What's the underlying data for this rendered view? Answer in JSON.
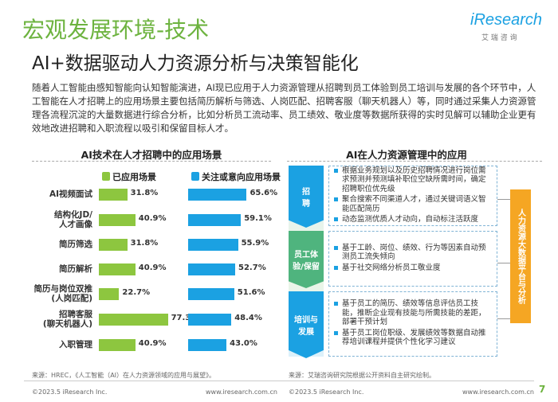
{
  "header": {
    "title": "宏观发展环境-技术",
    "logo": "iResearch",
    "logo_sub": "艾 瑞 咨 询",
    "subtitle": "AI+数据驱动人力资源分析与决策智能化"
  },
  "intro": "随着人工智能由感知智能向认知智能演进，AI现已应用于人力资源管理从招聘到员工体验到员工培训与发展的各个环节中，人工智能在人才招聘上的应用场景主要包括简历解析与筛选、人岗匹配、招聘客服（聊天机器人）等，同时通过采集人力资源管理各流程沉淀的大量数据进行综合分析，比如分析员工流动率、员工绩效、敬业度等数据所获得的实时见解可以辅助企业更有效地改进招聘和入职流程以吸引和保留目标人才。",
  "chart_data": {
    "type": "bar",
    "title": "AI技术在人才招聘中的应用场景",
    "categories": [
      "AI视频面试",
      "结构化JD/\n人才画像",
      "简历筛选",
      "简历解析",
      "简历与岗位双推\n(人岗匹配)",
      "招聘客服\n(聊天机器人)",
      "入职管理"
    ],
    "series": [
      {
        "name": "已应用场景",
        "color": "#8dc63f",
        "values": [
          31.8,
          40.9,
          31.8,
          40.9,
          22.7,
          77.3,
          40.9
        ],
        "value_labels": [
          "31.8%",
          "40.9%",
          "31.8%",
          "40.9%",
          "22.7%",
          "77.3%",
          "40.9%"
        ]
      },
      {
        "name": "关注或意向应用场景",
        "color": "#1ba1e2",
        "values": [
          65.6,
          59.1,
          55.9,
          52.7,
          51.6,
          48.4,
          43.0
        ],
        "value_labels": [
          "65.6%",
          "59.1%",
          "55.9%",
          "52.7%",
          "51.6%",
          "48.4%",
          "43.0%"
        ]
      }
    ],
    "xlim": [
      0,
      100
    ],
    "source": "来源：HREC，《人工智能（AI）在人力资源领域的应用与展望》。"
  },
  "diagram": {
    "title": "AI在人力资源管理中的应用",
    "stages": [
      {
        "label": "招\n聘",
        "items": [
          "根据业务规划以及历史招聘情况进行岗位需求预测并预测填补职位空缺所需时间，确定招聘职位优先级",
          "聚合搜索不同渠道人才，通过关键词语义智能匹配简历",
          "动态监测优质人才动向，自动标注活跃度"
        ]
      },
      {
        "label": "员工体\n验/保留",
        "items": [
          "基于工龄、岗位、绩效、行为等因素自动预测员工流失倾向",
          "基于社交网络分析员工敬业度"
        ]
      },
      {
        "label": "培训与\n发展",
        "items": [
          "基于员工的简历、绩效等信息评估员工技能，推断企业现有技能与所需技能的差距，部署干预计划",
          "基于员工岗位职级、发展绩效等数据自动推荐培训课程并提供个性化学习建议"
        ]
      }
    ],
    "platform": "人力资源大数据平台与分析",
    "source": "来源：艾瑞咨询研究院根据公开资料自主研究绘制。"
  },
  "footer": {
    "copyright_left": "©2023.5 iResearch Inc.",
    "url_left": "www.iresearch.com.cn",
    "copyright_right": "©2023.5 iResearch Inc.",
    "url_right": "www.iresearch.com.cn",
    "page": "7"
  }
}
